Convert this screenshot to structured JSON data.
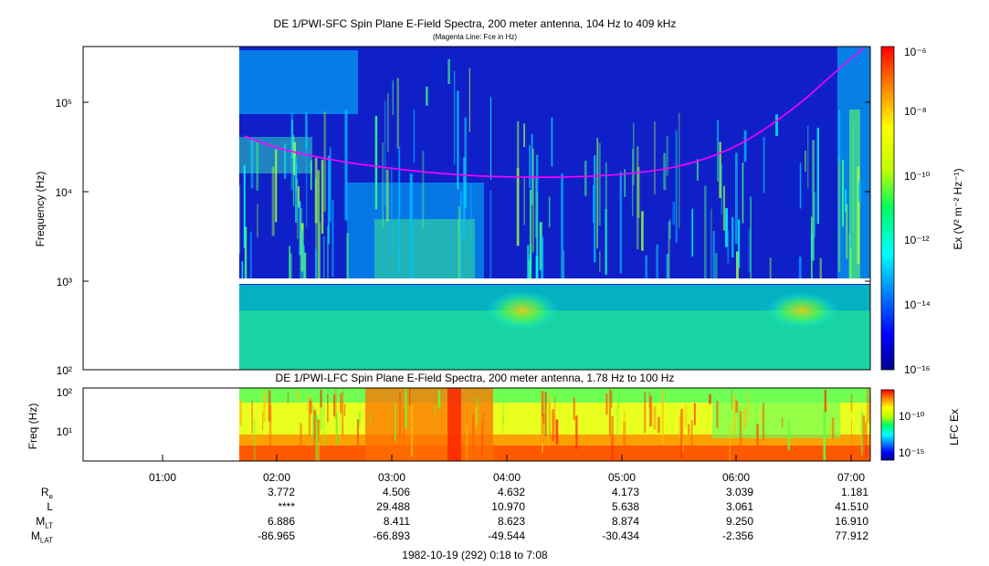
{
  "panels": {
    "sfc": {
      "title": "DE 1/PWI-SFC  Spin Plane E-Field Spectra, 200 meter antenna, 104 Hz to 409 kHz",
      "subtitle": "(Magenta Line: Fce in Hz)",
      "ylabel": "Frequency (Hz)",
      "colorbar_label": "Ex (V² m⁻² Hz⁻¹)",
      "colorbar_ticks": [
        "10⁻⁶",
        "10⁻⁸",
        "10⁻¹⁰",
        "10⁻¹²",
        "10⁻¹⁴",
        "10⁻¹⁶"
      ],
      "y_ticks": [
        "10⁵",
        "10⁴",
        "10³",
        "10²"
      ]
    },
    "lfc": {
      "title": "DE 1/PWI-LFC  Spin Plane E-Field Spectra, 200 meter antenna, 1.78 Hz to 100 Hz",
      "ylabel": "Freq (Hz)",
      "colorbar_label": "LFC Ex",
      "colorbar_ticks": [
        "10⁻¹⁰",
        "10⁻¹⁵"
      ],
      "y_ticks": [
        "10²",
        "10¹"
      ]
    }
  },
  "time_axis": {
    "ticks": [
      "01:00",
      "02:00",
      "03:00",
      "04:00",
      "05:00",
      "06:00",
      "07:00"
    ],
    "caption": "1982-10-19 (292) 0:18 to 7:08"
  },
  "ephemeris": {
    "labels": [
      {
        "main": "R",
        "sub": "e"
      },
      {
        "main": "L",
        "sub": ""
      },
      {
        "main": "M",
        "sub": "LT"
      },
      {
        "main": "M",
        "sub": "LAT"
      }
    ],
    "rows": [
      [
        "3.772",
        "4.506",
        "4.632",
        "4.173",
        "3.039",
        "1.181"
      ],
      [
        "****",
        "29.488",
        "10.970",
        "5.638",
        "3.061",
        "41.510"
      ],
      [
        "6.886",
        "8.411",
        "8.623",
        "8.874",
        "9.250",
        "16.910"
      ],
      [
        "-86.965",
        "-66.893",
        "-49.544",
        "-30.434",
        "-2.356",
        "77.912"
      ]
    ]
  },
  "chart_data": [
    {
      "type": "heatmap",
      "title": "DE 1/PWI-SFC  Spin Plane E-Field Spectra, 200 meter antenna, 104 Hz to 409 kHz",
      "subtitle": "(Magenta Line: Fce in Hz)",
      "xlabel": "",
      "ylabel": "Frequency (Hz)",
      "x_range": [
        "00:18",
        "07:08"
      ],
      "data_start": "01:42",
      "ylim": [
        100,
        409000
      ],
      "y_scale": "log",
      "colorbar": {
        "label": "Ex (V^2 m^-2 Hz^-1)",
        "range": [
          1e-16,
          1e-06
        ],
        "scale": "log"
      },
      "grid": false,
      "series": [
        {
          "name": "Fce in Hz",
          "color": "#ff00ff",
          "x": [
            "01:42",
            "02:00",
            "02:30",
            "03:00",
            "03:30",
            "04:00",
            "04:30",
            "05:00",
            "05:30",
            "06:00",
            "06:30",
            "06:50",
            "07:05"
          ],
          "y": [
            42000,
            30000,
            22000,
            18000,
            15500,
            14500,
            14500,
            15500,
            19000,
            32000,
            90000,
            220000,
            409000
          ]
        }
      ]
    },
    {
      "type": "heatmap",
      "title": "DE 1/PWI-LFC  Spin Plane E-Field Spectra, 200 meter antenna, 1.78 Hz to 100 Hz",
      "xlabel": "",
      "ylabel": "Freq (Hz)",
      "x_range": [
        "00:18",
        "07:08"
      ],
      "data_start": "01:42",
      "ylim": [
        1.78,
        100
      ],
      "y_scale": "log",
      "colorbar": {
        "label": "LFC Ex",
        "range": [
          1e-17,
          1e-08
        ],
        "scale": "log"
      },
      "grid": false
    }
  ],
  "colors": {
    "sfc_background": "#1020c8",
    "fce_line": "#ff00ff"
  }
}
